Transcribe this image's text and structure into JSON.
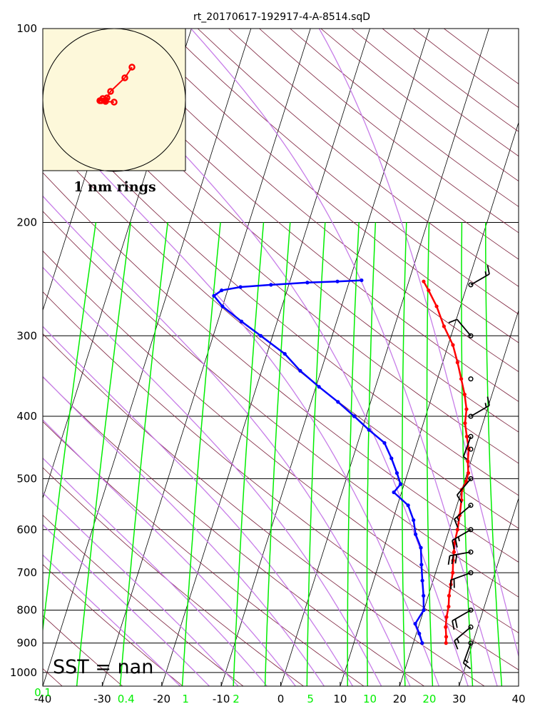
{
  "chart_data": {
    "type": "skew-t log-p",
    "title": "rt_20170617-192917-4-A-8514.sqD",
    "x_axis": {
      "label": "",
      "range": [
        -40,
        40
      ],
      "ticks": [
        "-40",
        "-30",
        "-20",
        "-10",
        "0",
        "10",
        "20",
        "30",
        "40"
      ]
    },
    "y_axis": {
      "label": "",
      "scale": "log",
      "range": [
        1050,
        100
      ],
      "ticks": [
        "100",
        "200",
        "300",
        "400",
        "500",
        "600",
        "700",
        "800",
        "900",
        "1000"
      ]
    },
    "mixing_ratio_ticks": [
      {
        "label": "0.1",
        "t": -40
      },
      {
        "label": "0.4",
        "t": -26
      },
      {
        "label": "1",
        "t": -16
      },
      {
        "label": "2",
        "t": -7.5
      },
      {
        "label": "5",
        "t": 5
      },
      {
        "label": "10",
        "t": 15
      },
      {
        "label": "20",
        "t": 25
      }
    ],
    "sst_text": "SST =  nan",
    "hodograph": {
      "label": "1 nm rings",
      "points": [
        [
          0.25,
          0.46
        ],
        [
          0.15,
          0.31
        ],
        [
          -0.05,
          0.12
        ],
        [
          -0.1,
          0.03
        ],
        [
          -0.12,
          0.0
        ],
        [
          -0.18,
          -0.01
        ],
        [
          -0.16,
          0.02
        ],
        [
          -0.2,
          -0.01
        ],
        [
          -0.12,
          -0.02
        ],
        [
          0.0,
          -0.03
        ]
      ]
    },
    "temperature": {
      "color": "#ff0000",
      "points": [
        {
          "p": 900,
          "t": 25.5
        },
        {
          "p": 880,
          "t": 25.2
        },
        {
          "p": 850,
          "t": 24.6
        },
        {
          "p": 820,
          "t": 24.2
        },
        {
          "p": 790,
          "t": 24.0
        },
        {
          "p": 760,
          "t": 23.5
        },
        {
          "p": 730,
          "t": 23.2
        },
        {
          "p": 700,
          "t": 22.9
        },
        {
          "p": 670,
          "t": 22.3
        },
        {
          "p": 650,
          "t": 22.0
        },
        {
          "p": 630,
          "t": 21.6
        },
        {
          "p": 600,
          "t": 21.4
        },
        {
          "p": 570,
          "t": 21.0
        },
        {
          "p": 540,
          "t": 20.5
        },
        {
          "p": 520,
          "t": 20.0
        },
        {
          "p": 505,
          "t": 20.3
        },
        {
          "p": 490,
          "t": 20.2
        },
        {
          "p": 470,
          "t": 19.5
        },
        {
          "p": 450,
          "t": 19.0
        },
        {
          "p": 430,
          "t": 18.0
        },
        {
          "p": 410,
          "t": 17.0
        },
        {
          "p": 390,
          "t": 16.5
        },
        {
          "p": 370,
          "t": 15.4
        },
        {
          "p": 350,
          "t": 14.0
        },
        {
          "p": 330,
          "t": 12.5
        },
        {
          "p": 310,
          "t": 10.8
        },
        {
          "p": 290,
          "t": 8.3
        },
        {
          "p": 270,
          "t": 6.0
        },
        {
          "p": 255,
          "t": 3.8
        },
        {
          "p": 247,
          "t": 2.5
        }
      ]
    },
    "dewpoint": {
      "color": "#0000ff",
      "points": [
        {
          "p": 900,
          "t": 21.5
        },
        {
          "p": 870,
          "t": 20.5
        },
        {
          "p": 840,
          "t": 19.3
        },
        {
          "p": 800,
          "t": 20.0
        },
        {
          "p": 760,
          "t": 19.2
        },
        {
          "p": 720,
          "t": 18.2
        },
        {
          "p": 680,
          "t": 17.2
        },
        {
          "p": 640,
          "t": 16.2
        },
        {
          "p": 610,
          "t": 14.6
        },
        {
          "p": 580,
          "t": 13.5
        },
        {
          "p": 550,
          "t": 11.8
        },
        {
          "p": 525,
          "t": 8.7
        },
        {
          "p": 510,
          "t": 9.4
        },
        {
          "p": 490,
          "t": 8.2
        },
        {
          "p": 465,
          "t": 6.5
        },
        {
          "p": 440,
          "t": 4.5
        },
        {
          "p": 420,
          "t": 1.2
        },
        {
          "p": 400,
          "t": -2.0
        },
        {
          "p": 380,
          "t": -5.5
        },
        {
          "p": 360,
          "t": -9.5
        },
        {
          "p": 340,
          "t": -13.5
        },
        {
          "p": 320,
          "t": -17.0
        },
        {
          "p": 300,
          "t": -22.0
        },
        {
          "p": 285,
          "t": -26.0
        },
        {
          "p": 270,
          "t": -30.0
        },
        {
          "p": 260,
          "t": -32.0
        },
        {
          "p": 255,
          "t": -31.0
        },
        {
          "p": 252,
          "t": -28.0
        },
        {
          "p": 250,
          "t": -23.0
        },
        {
          "p": 248,
          "t": -17.0
        },
        {
          "p": 247,
          "t": -12.0
        },
        {
          "p": 246,
          "t": -8.0
        }
      ]
    },
    "wind_barbs": [
      {
        "p": 900,
        "dir": 200,
        "kt": 15
      },
      {
        "p": 850,
        "dir": 230,
        "kt": 15
      },
      {
        "p": 800,
        "dir": 240,
        "kt": 20
      },
      {
        "p": 700,
        "dir": 250,
        "kt": 20
      },
      {
        "p": 650,
        "dir": 260,
        "kt": 30
      },
      {
        "p": 600,
        "dir": 240,
        "kt": 25
      },
      {
        "p": 550,
        "dir": 230,
        "kt": 15
      },
      {
        "p": 500,
        "dir": 220,
        "kt": 10
      },
      {
        "p": 450,
        "dir": 0,
        "kt": 0
      },
      {
        "p": 430,
        "dir": 200,
        "kt": 5
      },
      {
        "p": 400,
        "dir": 60,
        "kt": 15
      },
      {
        "p": 350,
        "dir": 0,
        "kt": 0
      },
      {
        "p": 300,
        "dir": 320,
        "kt": 10
      },
      {
        "p": 250,
        "dir": 60,
        "kt": 15
      }
    ],
    "line_colors": {
      "isotherm": "#000000",
      "dry_adiabat": "#7b1f3a",
      "moist_adiabat": "#c77de8",
      "mixing_ratio": "#00ee00",
      "hodograph_bg": "#fdf8da"
    }
  }
}
